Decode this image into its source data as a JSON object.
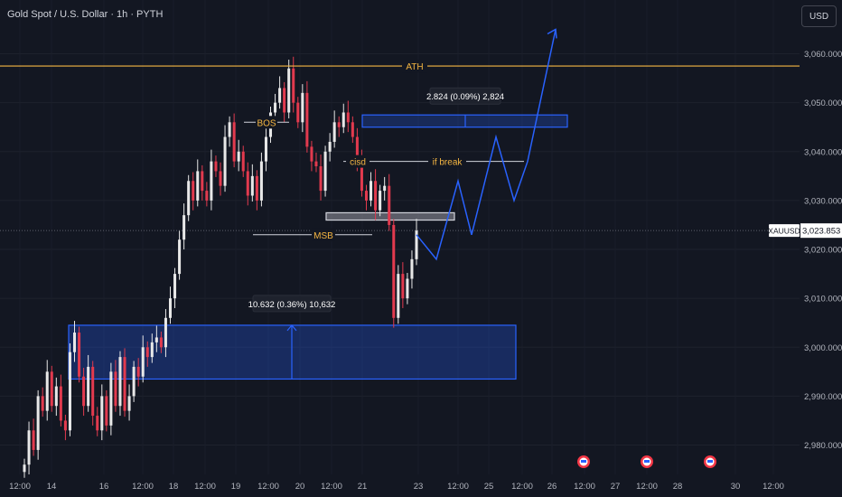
{
  "header": {
    "title": "Gold Spot / U.S. Dollar · 1h · PYTH",
    "currency": "USD"
  },
  "price_tag": {
    "symbol": "XAUUSD",
    "value": "3,023.853"
  },
  "colors": {
    "background": "#131722",
    "up": "#e8e8e8",
    "down": "#e23a4e",
    "accent": "#2962ff",
    "ath": "#f5b642",
    "label": "#f5b642",
    "text": "#d1d4dc"
  },
  "chart_data": {
    "type": "candlestick",
    "ylim": [
      2974,
      3071
    ],
    "y_ticks": [
      3060,
      3050,
      3040,
      3030,
      3020,
      3010,
      3000,
      2990,
      2980
    ],
    "y_tick_labels": [
      "3,060.000",
      "3,050.000",
      "3,040.000",
      "3,030.000",
      "3,020.000",
      "3,010.000",
      "3,000.000",
      "2,990.000",
      "2,980.000"
    ],
    "x_ticks": [
      "12:00",
      "14",
      "16",
      "12:00",
      "18",
      "12:00",
      "19",
      "12:00",
      "20",
      "12:00",
      "21",
      "23",
      "12:00",
      "25",
      "12:00",
      "26",
      "12:00",
      "27",
      "12:00",
      "28",
      "30",
      "12:00"
    ],
    "price_series": [
      2976,
      2983,
      2979,
      2990,
      2987,
      2995,
      2988,
      2992,
      2985,
      2983,
      2999,
      3003,
      2994,
      2988,
      2996,
      2986,
      2983,
      2990,
      2984,
      2995,
      2988,
      2998,
      2987,
      2990,
      2996,
      2994,
      3000,
      2998,
      3001,
      3002,
      3000,
      3006,
      3010,
      3015,
      3022,
      3027,
      3034,
      3030,
      3036,
      3032,
      3030,
      3038,
      3036,
      3033,
      3043,
      3046,
      3038,
      3040,
      3036,
      3031,
      3035,
      3030,
      3038,
      3043,
      3048,
      3050,
      3053,
      3048,
      3057,
      3050,
      3046,
      3052,
      3041,
      3038,
      3037,
      3032,
      3040,
      3042,
      3046,
      3045,
      3048,
      3046,
      3043,
      3038,
      3032,
      3030,
      3034,
      3028,
      3032,
      3033,
      3025,
      3006,
      3015,
      3010,
      3014,
      3018,
      3023.853
    ],
    "last_price": 3023.853,
    "annotations": {
      "ath_level": 3057.5,
      "ath_label": "ATH",
      "bos_label": "BOS",
      "bos_level": 3046,
      "msb_label": "MSB",
      "msb_level": 3023,
      "cisd_label": "cisd",
      "if_break_label": "if break",
      "if_break_level": 3038,
      "zone_upper": [
        3047.5,
        3045
      ],
      "zone_upper_measure": "2.824 (0.09%) 2,824",
      "zone_mid": [
        3027.5,
        3026
      ],
      "zone_lower": [
        3004.5,
        2993.5
      ],
      "zone_lower_measure": "10.632 (0.36%) 10,632",
      "projection": [
        3023,
        3018,
        3034,
        3023,
        3043,
        3030,
        3038,
        3065
      ]
    },
    "event_markers": 3
  }
}
